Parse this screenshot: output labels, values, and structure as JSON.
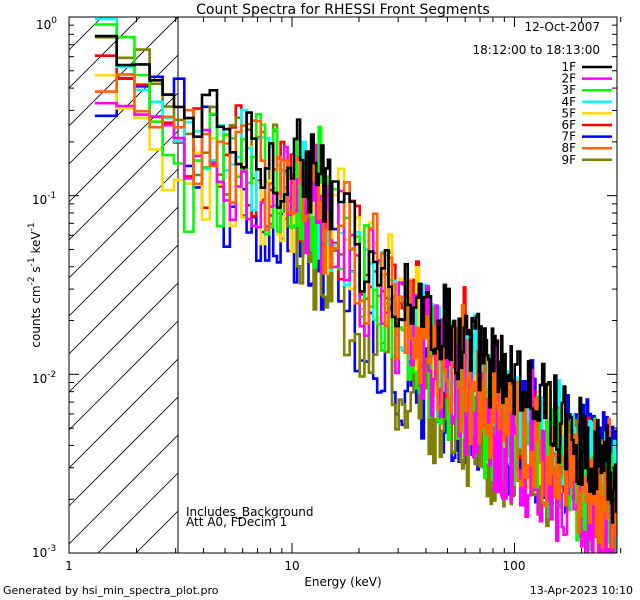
{
  "chart_data": {
    "type": "line",
    "title": "Count Spectra for RHESSI Front Segments",
    "xlabel": "Energy (keV)",
    "ylabel_parts": [
      "counts cm",
      "-2",
      " s",
      "-1",
      " keV",
      "-1"
    ],
    "xscale": "log",
    "yscale": "log",
    "xlim": [
      1.2,
      300
    ],
    "ylim": [
      0.001,
      1.0
    ],
    "x_tick_labels": [
      {
        "value": 1,
        "label": "1"
      },
      {
        "value": 10,
        "label": "10"
      },
      {
        "value": 100,
        "label": "100"
      }
    ],
    "y_tick_labels": [
      {
        "value": 1.0,
        "base": "10",
        "exp": "0"
      },
      {
        "value": 0.1,
        "base": "10",
        "exp": "-1"
      },
      {
        "value": 0.01,
        "base": "10",
        "exp": "-2"
      },
      {
        "value": 0.001,
        "base": "10",
        "exp": "-3"
      }
    ],
    "date": "12-Oct-2007",
    "time_range": "18:12:00 to 18:13:00",
    "shaded_region": {
      "x_from": 1.2,
      "x_to": 3.0,
      "pattern": "diagonal hatch"
    },
    "annotations": [
      "Includes_Background",
      "Att A0, FDecim 1"
    ],
    "series": [
      {
        "name": "1F",
        "color": "#000000",
        "anchors": [
          [
            1.3,
            0.75
          ],
          [
            1.7,
            0.5
          ],
          [
            2.5,
            0.45
          ],
          [
            3.0,
            0.3
          ],
          [
            5,
            0.2
          ],
          [
            8,
            0.15
          ],
          [
            11,
            0.15
          ],
          [
            14,
            0.1
          ],
          [
            20,
            0.05
          ],
          [
            30,
            0.03
          ],
          [
            50,
            0.018
          ],
          [
            80,
            0.011
          ],
          [
            150,
            0.006
          ],
          [
            250,
            0.003
          ],
          [
            300,
            0.0022
          ]
        ],
        "noise": 0.25
      },
      {
        "name": "2F",
        "color": "#ff00ff",
        "anchors": [
          [
            1.3,
            0.3
          ],
          [
            2,
            0.27
          ],
          [
            3,
            0.2
          ],
          [
            5,
            0.15
          ],
          [
            8,
            0.1
          ],
          [
            12,
            0.07
          ],
          [
            18,
            0.045
          ],
          [
            30,
            0.02
          ],
          [
            50,
            0.01
          ],
          [
            80,
            0.005
          ],
          [
            150,
            0.0025
          ],
          [
            250,
            0.0012
          ],
          [
            300,
            0.001
          ]
        ],
        "noise": 0.35
      },
      {
        "name": "3F",
        "color": "#00ff00",
        "anchors": [
          [
            1.3,
            0.8
          ],
          [
            2,
            0.5
          ],
          [
            2.8,
            0.15
          ],
          [
            3,
            0.14
          ],
          [
            5,
            0.14
          ],
          [
            8,
            0.13
          ],
          [
            12,
            0.09
          ],
          [
            18,
            0.05
          ],
          [
            30,
            0.02
          ],
          [
            50,
            0.009
          ],
          [
            80,
            0.005
          ],
          [
            150,
            0.003
          ],
          [
            250,
            0.002
          ],
          [
            300,
            0.0015
          ]
        ],
        "noise": 0.35
      },
      {
        "name": "4F",
        "color": "#00ffff",
        "anchors": [
          [
            1.3,
            0.85
          ],
          [
            2,
            0.45
          ],
          [
            3,
            0.18
          ],
          [
            5,
            0.17
          ],
          [
            8,
            0.13
          ],
          [
            12,
            0.1
          ],
          [
            16,
            0.06
          ],
          [
            20,
            0.04
          ],
          [
            30,
            0.025
          ],
          [
            50,
            0.012
          ],
          [
            80,
            0.007
          ],
          [
            150,
            0.004
          ],
          [
            250,
            0.0025
          ],
          [
            300,
            0.0022
          ]
        ],
        "noise": 0.3
      },
      {
        "name": "5F",
        "color": "#ffdd00",
        "anchors": [
          [
            1.3,
            0.4
          ],
          [
            1.8,
            0.3
          ],
          [
            2.5,
            0.12
          ],
          [
            3,
            0.11
          ],
          [
            5,
            0.12
          ],
          [
            8,
            0.1
          ],
          [
            12,
            0.08
          ],
          [
            18,
            0.05
          ],
          [
            30,
            0.025
          ],
          [
            50,
            0.011
          ],
          [
            80,
            0.006
          ],
          [
            150,
            0.003
          ],
          [
            250,
            0.0018
          ],
          [
            300,
            0.0015
          ]
        ],
        "noise": 0.3
      },
      {
        "name": "6F",
        "color": "#ff0000",
        "anchors": [
          [
            1.3,
            0.5
          ],
          [
            2,
            0.4
          ],
          [
            3,
            0.17
          ],
          [
            5,
            0.17
          ],
          [
            8,
            0.13
          ],
          [
            12,
            0.09
          ],
          [
            18,
            0.05
          ],
          [
            30,
            0.03
          ],
          [
            50,
            0.012
          ],
          [
            80,
            0.007
          ],
          [
            150,
            0.004
          ],
          [
            250,
            0.0025
          ],
          [
            300,
            0.002
          ]
        ],
        "noise": 0.3
      },
      {
        "name": "7F",
        "color": "#0000ff",
        "anchors": [
          [
            1.3,
            0.35
          ],
          [
            2,
            0.45
          ],
          [
            3,
            0.38
          ],
          [
            3.5,
            0.25
          ],
          [
            5,
            0.1
          ],
          [
            7,
            0.07
          ],
          [
            10,
            0.06
          ],
          [
            14,
            0.04
          ],
          [
            20,
            0.02
          ],
          [
            30,
            0.012
          ],
          [
            50,
            0.007
          ],
          [
            80,
            0.005
          ],
          [
            150,
            0.004
          ],
          [
            250,
            0.003
          ],
          [
            300,
            0.002
          ]
        ],
        "noise": 0.35
      },
      {
        "name": "8F",
        "color": "#ff6600",
        "anchors": [
          [
            1.3,
            0.45
          ],
          [
            2,
            0.35
          ],
          [
            3,
            0.2
          ],
          [
            5,
            0.16
          ],
          [
            8,
            0.12
          ],
          [
            12,
            0.08
          ],
          [
            18,
            0.045
          ],
          [
            30,
            0.022
          ],
          [
            50,
            0.01
          ],
          [
            80,
            0.006
          ],
          [
            150,
            0.0033
          ],
          [
            250,
            0.002
          ],
          [
            300,
            0.0017
          ]
        ],
        "noise": 0.3
      },
      {
        "name": "9F",
        "color": "#808000",
        "anchors": [
          [
            1.3,
            0.9
          ],
          [
            2,
            0.55
          ],
          [
            2.6,
            0.35
          ],
          [
            3,
            0.2
          ],
          [
            5,
            0.16
          ],
          [
            8,
            0.12
          ],
          [
            12,
            0.06
          ],
          [
            15,
            0.025
          ],
          [
            20,
            0.015
          ],
          [
            30,
            0.01
          ],
          [
            50,
            0.006
          ],
          [
            80,
            0.004
          ],
          [
            150,
            0.003
          ],
          [
            250,
            0.0022
          ],
          [
            300,
            0.002
          ]
        ],
        "noise": 0.35
      }
    ]
  },
  "footer": {
    "generated_by": "Generated by hsi_min_spectra_plot.pro",
    "timestamp": "13-Apr-2023 10:10"
  }
}
